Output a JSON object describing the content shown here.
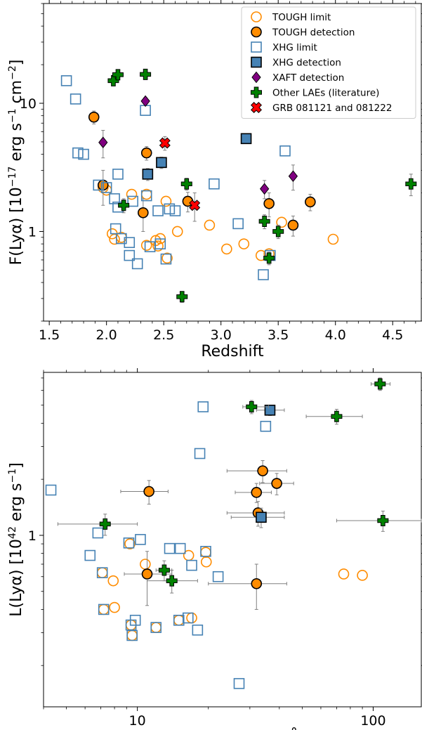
{
  "legend": [
    {
      "label": "TOUGH limit",
      "marker": "circle",
      "fill": "none",
      "stroke": "#ff8c00"
    },
    {
      "label": "TOUGH detection",
      "marker": "circle",
      "fill": "#ff8c00",
      "stroke": "#000000"
    },
    {
      "label": "XHG limit",
      "marker": "square",
      "fill": "none",
      "stroke": "#4682b4"
    },
    {
      "label": "XHG detection",
      "marker": "square",
      "fill": "#4682b4",
      "stroke": "#000000"
    },
    {
      "label": "XAFT detection",
      "marker": "diamond",
      "fill": "#800080",
      "stroke": "#000000"
    },
    {
      "label": "Other LAEs (literature)",
      "marker": "plus",
      "fill": "#008000",
      "stroke": "#000000"
    },
    {
      "label": "GRB 081121 and 081222",
      "marker": "x",
      "fill": "#ff0000",
      "stroke": "#000000"
    }
  ],
  "colors": {
    "tough": "#ff8c00",
    "xhg": "#4682b4",
    "xaft": "#800080",
    "lit": "#008000",
    "grb": "#ff0000",
    "errorbar": "#808080"
  },
  "chart_data": [
    {
      "type": "scatter",
      "title": "",
      "xlabel": "Redshift",
      "ylabel": "F(Lyα) [10^-17 erg s^-1 cm^-2]",
      "xscale": "linear",
      "yscale": "log",
      "xlim": [
        1.45,
        4.75
      ],
      "ylim": [
        0.2,
        60
      ],
      "xticks": [
        1.5,
        2.0,
        2.5,
        3.0,
        3.5,
        4.0,
        4.5
      ],
      "xtick_labels": [
        "1.5",
        "2.0",
        "2.5",
        "3.0",
        "3.5",
        "4.0",
        "4.5"
      ],
      "yticks": [
        1,
        10
      ],
      "ytick_labels": [
        "1",
        "10"
      ],
      "legend_position": "top-right",
      "series": [
        {
          "name": "TOUGH limit",
          "points": [
            [
              1.97,
              2.2
            ],
            [
              2.0,
              2.1
            ],
            [
              2.05,
              0.96
            ],
            [
              2.07,
              0.87
            ],
            [
              2.13,
              0.9
            ],
            [
              2.22,
              1.95
            ],
            [
              2.35,
              1.95
            ],
            [
              2.35,
              0.78
            ],
            [
              2.43,
              0.85
            ],
            [
              2.45,
              0.77
            ],
            [
              2.47,
              0.88
            ],
            [
              2.52,
              1.72
            ],
            [
              2.53,
              0.62
            ],
            [
              2.62,
              1.0
            ],
            [
              2.9,
              1.12
            ],
            [
              3.05,
              0.73
            ],
            [
              3.2,
              0.8
            ],
            [
              3.35,
              0.65
            ],
            [
              3.42,
              0.67
            ],
            [
              3.53,
              1.18
            ],
            [
              3.98,
              0.87
            ]
          ]
        },
        {
          "name": "TOUGH detection",
          "points": [
            [
              1.89,
              7.8,
              0.9
            ],
            [
              1.97,
              2.3,
              0.7
            ],
            [
              2.32,
              1.4,
              0.4
            ],
            [
              2.35,
              4.1,
              0.5
            ],
            [
              2.71,
              1.72,
              0.3
            ],
            [
              3.42,
              1.65,
              0.35
            ],
            [
              3.63,
              1.12,
              0.2
            ],
            [
              3.78,
              1.7,
              0.25
            ]
          ]
        },
        {
          "name": "XHG limit",
          "points": [
            [
              1.65,
              15.0
            ],
            [
              1.73,
              10.8
            ],
            [
              1.75,
              4.1
            ],
            [
              1.8,
              4.0
            ],
            [
              1.93,
              2.3
            ],
            [
              2.0,
              2.2
            ],
            [
              2.07,
              1.8
            ],
            [
              2.08,
              1.05
            ],
            [
              2.1,
              2.8
            ],
            [
              2.1,
              1.55
            ],
            [
              2.13,
              0.88
            ],
            [
              2.2,
              0.82
            ],
            [
              2.2,
              0.65
            ],
            [
              2.23,
              1.72
            ],
            [
              2.27,
              0.56
            ],
            [
              2.34,
              8.8
            ],
            [
              2.35,
              1.9
            ],
            [
              2.38,
              0.76
            ],
            [
              2.45,
              1.45
            ],
            [
              2.47,
              0.8
            ],
            [
              2.52,
              0.61
            ],
            [
              2.55,
              1.5
            ],
            [
              2.6,
              1.45
            ],
            [
              2.94,
              2.35
            ],
            [
              3.15,
              1.15
            ],
            [
              3.37,
              0.46
            ],
            [
              3.43,
              0.65
            ],
            [
              3.56,
              4.25
            ]
          ]
        },
        {
          "name": "XHG detection",
          "points": [
            [
              2.36,
              2.8,
              0.3
            ],
            [
              2.48,
              3.45,
              0.35
            ],
            [
              3.22,
              5.3,
              0.3
            ]
          ]
        },
        {
          "name": "XAFT detection",
          "points": [
            [
              1.97,
              4.95,
              1.2
            ],
            [
              2.34,
              10.4,
              0.7
            ],
            [
              3.38,
              2.15,
              0.35
            ],
            [
              3.63,
              2.7,
              0.6
            ]
          ]
        },
        {
          "name": "Other LAEs (literature)",
          "points": [
            [
              2.06,
              15.0,
              0.8
            ],
            [
              2.1,
              16.7,
              1.0
            ],
            [
              2.15,
              1.6,
              0.2
            ],
            [
              2.34,
              16.8,
              0.9
            ],
            [
              2.66,
              0.31,
              0.03
            ],
            [
              2.7,
              2.35,
              0.25
            ],
            [
              3.38,
              1.2,
              0.15
            ],
            [
              3.42,
              0.62,
              0.07
            ],
            [
              3.5,
              1.0,
              0.12
            ],
            [
              4.66,
              2.35,
              0.45
            ]
          ]
        },
        {
          "name": "GRB 081121 and 081222",
          "points": [
            [
              2.51,
              4.9,
              0.6
            ],
            [
              2.77,
              1.6,
              0.4
            ]
          ]
        }
      ]
    },
    {
      "type": "scatter",
      "title": "",
      "xlabel": "EW rest−frame [Å]",
      "ylabel": "L(Lyα) [10^42 erg s^-1]",
      "xscale": "log",
      "yscale": "log",
      "xlim": [
        4,
        160
      ],
      "ylim": [
        0.12,
        7.5
      ],
      "xticks": [
        10,
        100
      ],
      "xtick_labels": [
        "10",
        "100"
      ],
      "yticks": [
        1
      ],
      "ytick_labels": [
        "1"
      ],
      "series": [
        {
          "name": "TOUGH limit",
          "points": [
            [
              7.1,
              0.63
            ],
            [
              7.2,
              0.4
            ],
            [
              7.9,
              0.57
            ],
            [
              8.0,
              0.41
            ],
            [
              9.3,
              0.9
            ],
            [
              9.4,
              0.33
            ],
            [
              9.5,
              0.29
            ],
            [
              10.8,
              0.7
            ],
            [
              12.0,
              0.32
            ],
            [
              15.0,
              0.35
            ],
            [
              16.5,
              0.78
            ],
            [
              17.0,
              0.36
            ],
            [
              19.5,
              0.81
            ],
            [
              19.6,
              0.72
            ],
            [
              75.0,
              0.62
            ],
            [
              90.0,
              0.61
            ]
          ]
        },
        {
          "name": "TOUGH detection",
          "points": [
            [
              11.0,
              0.62,
              0.2,
              8.8,
              14.0
            ],
            [
              11.2,
              1.72,
              0.25,
              8.5,
              13.5
            ],
            [
              32.0,
              0.55,
              0.15,
              20.0,
              43.0
            ],
            [
              32.0,
              1.7,
              0.2,
              26.0,
              37.0
            ],
            [
              32.5,
              1.32,
              0.2,
              24.0,
              42.0
            ],
            [
              34.0,
              2.22,
              0.3,
              24.0,
              43.0
            ],
            [
              39.0,
              1.9,
              0.25,
              33.0,
              46.0
            ]
          ]
        },
        {
          "name": "XHG limit",
          "points": [
            [
              4.3,
              1.75
            ],
            [
              6.3,
              0.78
            ],
            [
              6.8,
              1.03
            ],
            [
              7.1,
              0.63
            ],
            [
              7.2,
              0.4
            ],
            [
              9.2,
              0.91
            ],
            [
              9.4,
              0.33
            ],
            [
              9.5,
              0.29
            ],
            [
              9.8,
              0.35
            ],
            [
              10.3,
              0.95
            ],
            [
              12.0,
              0.32
            ],
            [
              13.7,
              0.85
            ],
            [
              15.2,
              0.85
            ],
            [
              15.0,
              0.35
            ],
            [
              16.4,
              0.36
            ],
            [
              17.0,
              0.69
            ],
            [
              18.0,
              0.31
            ],
            [
              18.4,
              2.75
            ],
            [
              19.0,
              4.9
            ],
            [
              19.5,
              0.82
            ],
            [
              22.0,
              0.6
            ],
            [
              27.0,
              0.16
            ],
            [
              35.0,
              3.85
            ]
          ]
        },
        {
          "name": "XHG detection",
          "points": [
            [
              33.5,
              1.25,
              0.15,
              25.0,
              42.0
            ],
            [
              36.5,
              4.7,
              0.3,
              32.0,
              42.0
            ]
          ]
        },
        {
          "name": "Other LAEs (literature)",
          "points": [
            [
              7.3,
              1.15,
              0.15,
              4.6,
              10.0
            ],
            [
              13.0,
              0.65,
              0.08,
              12.0,
              14.0
            ],
            [
              14.0,
              0.57,
              0.08,
              11.0,
              18.0
            ],
            [
              30.5,
              4.9,
              0.4,
              28.0,
              36.0
            ],
            [
              70.0,
              4.35,
              0.4,
              52.0,
              90.0
            ],
            [
              107.0,
              6.5,
              0.5,
              98.0,
              118.0
            ],
            [
              110.0,
              1.2,
              0.15,
              70.0,
              160.0
            ]
          ]
        }
      ]
    }
  ]
}
